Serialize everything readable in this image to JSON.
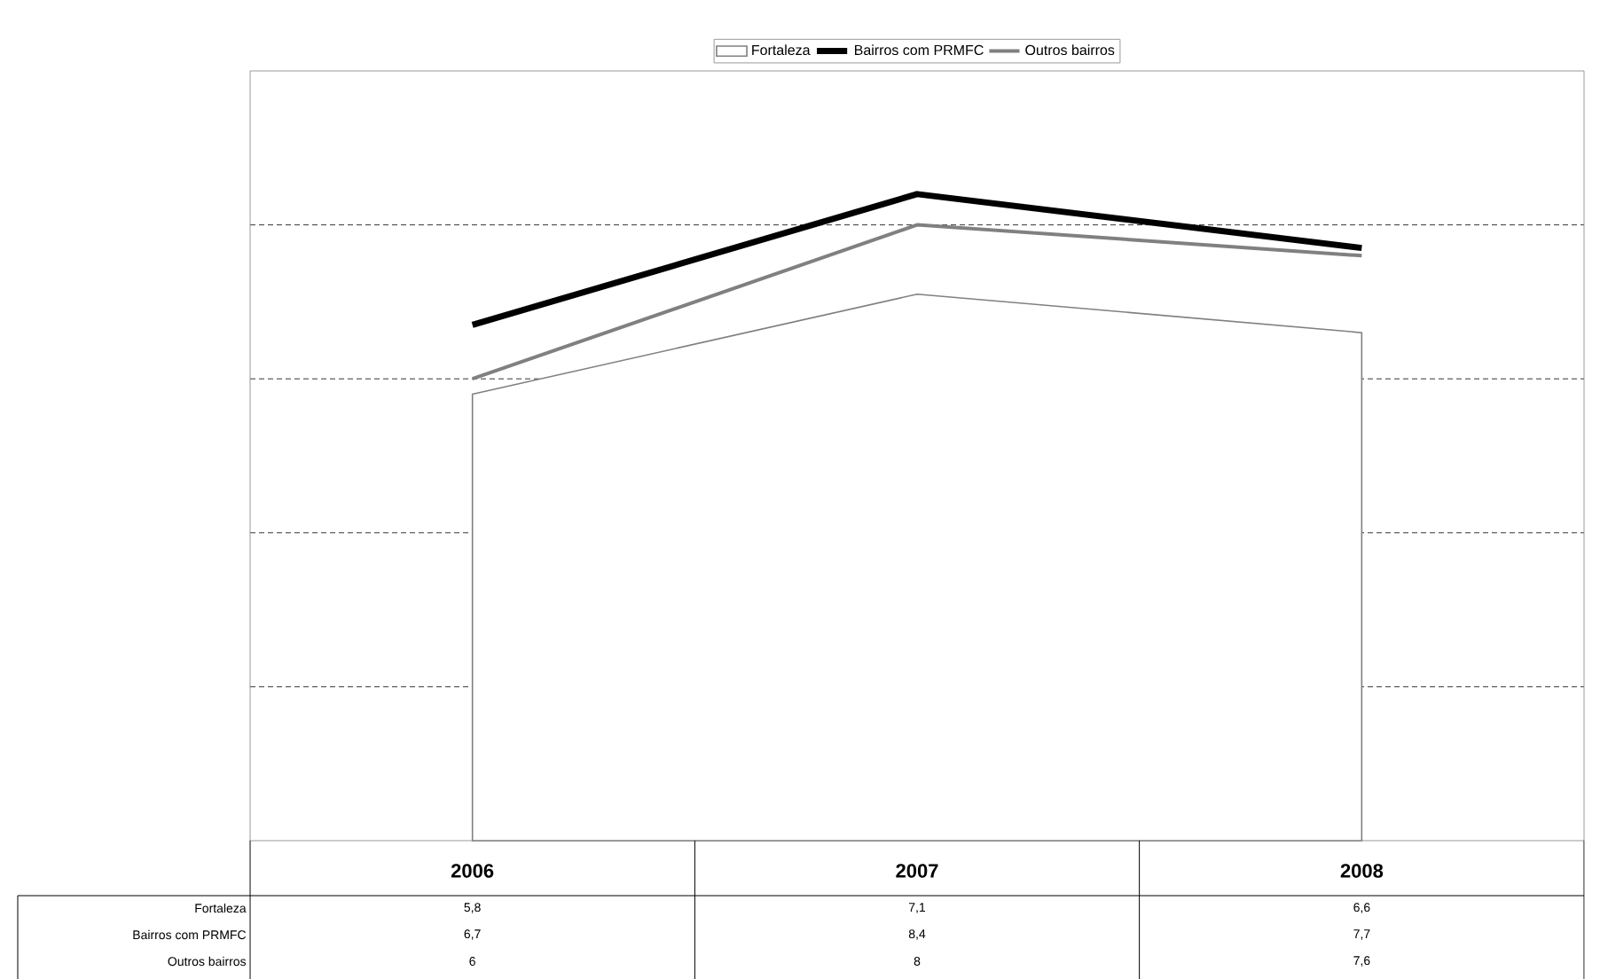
{
  "chart_data": {
    "type": "line",
    "categories": [
      "2006",
      "2007",
      "2008"
    ],
    "series": [
      {
        "name": "Fortaleza",
        "type": "area",
        "color": "#ffffff",
        "values": [
          5.8,
          7.1,
          6.6
        ],
        "value_labels": [
          "5,8",
          "7,1",
          "6,6"
        ]
      },
      {
        "name": "Bairros com PRMFC",
        "color": "#000000",
        "values": [
          6.7,
          8.4,
          7.7
        ],
        "value_labels": [
          "6,7",
          "8,4",
          "7,7"
        ]
      },
      {
        "name": "Outros bairros",
        "color": "#808080",
        "values": [
          6,
          8,
          7.6
        ],
        "value_labels": [
          "6",
          "8",
          "7,6"
        ]
      }
    ],
    "ylim": [
      0,
      10
    ],
    "yticks": [
      {
        "value": 2,
        "label": null
      },
      {
        "value": 4,
        "label": null
      },
      {
        "value": 6,
        "label": null
      },
      {
        "value": 8,
        "label": null
      }
    ],
    "grid": "y",
    "legend": "top",
    "tick_labels": "x"
  }
}
